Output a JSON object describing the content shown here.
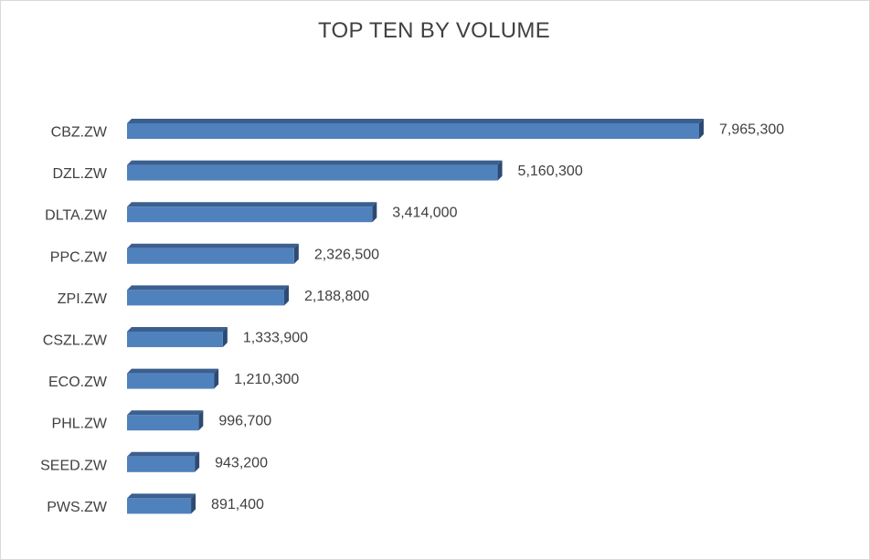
{
  "chart_data": {
    "type": "bar",
    "orientation": "horizontal",
    "title": "TOP TEN BY VOLUME",
    "categories": [
      "CBZ.ZW",
      "DZL.ZW",
      "DLTA.ZW",
      "PPC.ZW",
      "ZPI.ZW",
      "CSZL.ZW",
      "ECO.ZW",
      "PHL.ZW",
      "SEED.ZW",
      "PWS.ZW"
    ],
    "values": [
      7965300,
      5160300,
      3414000,
      2326500,
      2188800,
      1333900,
      1210300,
      996700,
      943200,
      891400
    ],
    "value_labels": [
      "7,965,300",
      "5,160,300",
      "3,414,000",
      "2,326,500",
      "2,188,800",
      "1,333,900",
      "1,210,300",
      "996,700",
      "943,200",
      "891,400"
    ],
    "xlabel": "",
    "ylabel": "",
    "xlim": [
      0,
      8000000
    ],
    "grid": false,
    "legend": "none",
    "bar_style": "3d",
    "colors": {
      "front": "#4f81bd",
      "top": "#3b5f8e",
      "side": "#2c4a73"
    }
  }
}
